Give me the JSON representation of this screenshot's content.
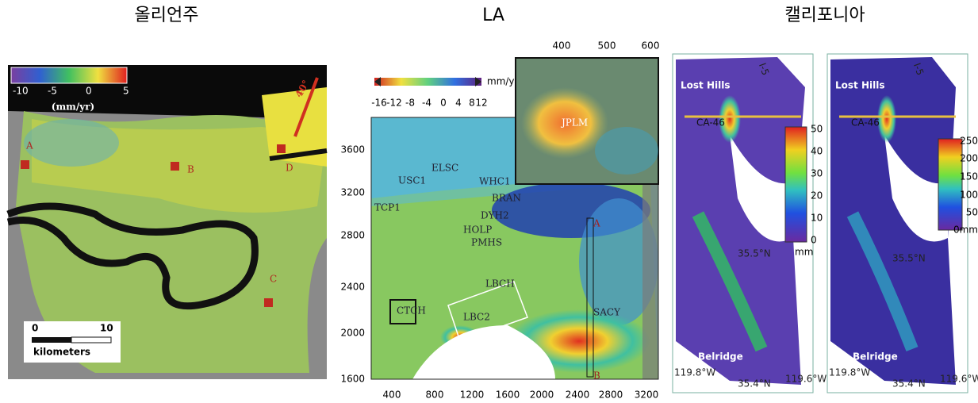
{
  "titles": [
    "올리언주",
    "LA",
    "캘리포니아"
  ],
  "new_orleans": {
    "colorbar_ticks": [
      "-10",
      "-5",
      "0",
      "5"
    ],
    "unit": "(mm/yr)",
    "angle": "40°",
    "sites": [
      "A",
      "B",
      "C",
      "D"
    ],
    "scale_ticks": [
      "0",
      "10"
    ],
    "scale_unit": "kilometers"
  },
  "la": {
    "colorbar_ticks": [
      "-16",
      "-12",
      "-8",
      "-4",
      "0",
      "4",
      "8",
      "12"
    ],
    "unit": "mm/y",
    "yticks": [
      "3600",
      "3200",
      "2800",
      "2400",
      "2000",
      "1600"
    ],
    "xticks": [
      "400",
      "800",
      "1200",
      "1600",
      "2000",
      "2400",
      "2800",
      "3200"
    ],
    "inset_ticks": [
      "400",
      "500",
      "600"
    ],
    "stations": [
      "USC1",
      "ELSC",
      "WHC1",
      "BRAN",
      "DYH2",
      "HOLP",
      "PMHS",
      "LBCH",
      "LBC2",
      "TCP1",
      "CTCH",
      "SACY",
      "JPLM"
    ],
    "profile": [
      "A",
      "B"
    ]
  },
  "california": {
    "places": [
      "Lost Hills",
      "CA-46",
      "Belridge",
      "Lost Hills",
      "CA-46",
      "Belridge"
    ],
    "highway": [
      "I-5",
      "I-5"
    ],
    "lat": [
      "35.5°N",
      "35.4°N",
      "35.5°N",
      "35.4°N"
    ],
    "lon": [
      "119.8°W",
      "119.6°W",
      "119.8°W",
      "119.6°W"
    ],
    "colorbar1": [
      "50",
      "40",
      "30",
      "20",
      "10",
      "0",
      "mm"
    ],
    "colorbar2": [
      "250",
      "200",
      "150",
      "100",
      "50",
      "0mm"
    ]
  }
}
